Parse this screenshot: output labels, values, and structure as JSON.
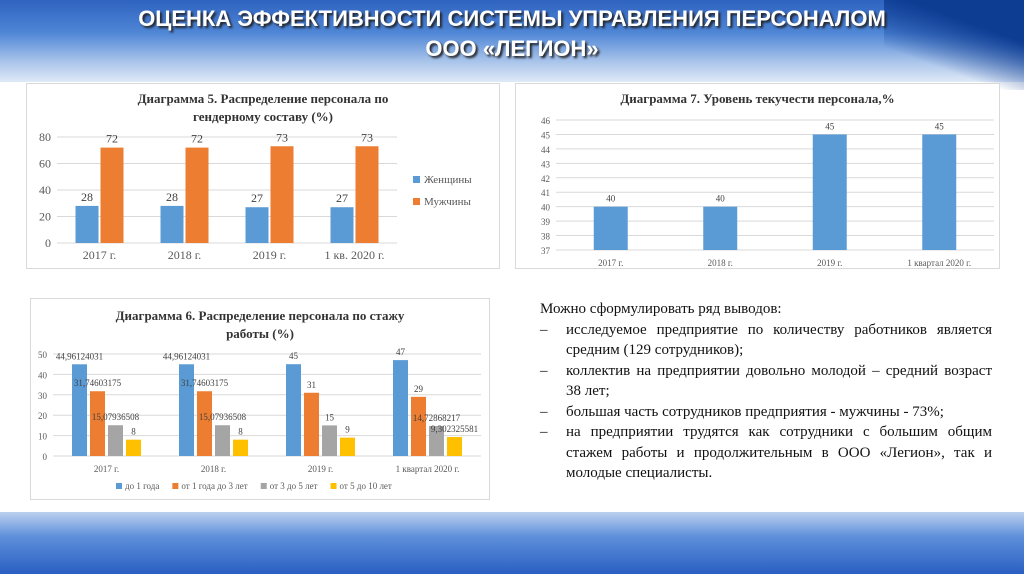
{
  "header": {
    "line1": "ОЦЕНКА ЭФФЕКТИВНОСТИ СИСТЕМЫ УПРАВЛЕНИЯ ПЕРСОНАЛОМ",
    "line2": "ООО «ЛЕГИОН»"
  },
  "chart_data": [
    {
      "id": "c5",
      "type": "bar",
      "title": "Диаграмма 5. Распределение персонала по гендерному составу (%)",
      "title_lines": [
        "Диаграмма 5. Распределение персонала по",
        "гендерному составу (%)"
      ],
      "categories": [
        "2017 г.",
        "2018 г.",
        "2019 г.",
        "1 кв. 2020 г."
      ],
      "series": [
        {
          "name": "Женщины",
          "color": "#5b9bd5",
          "values": [
            28,
            28,
            27,
            27
          ],
          "labels": [
            "28",
            "28",
            "27",
            "27"
          ]
        },
        {
          "name": "Мужчины",
          "color": "#ed7d31",
          "values": [
            72,
            72,
            73,
            73
          ],
          "labels": [
            "72",
            "72",
            "73",
            "73"
          ]
        }
      ],
      "ylim": [
        0,
        80
      ],
      "yticks": [
        "0",
        "20",
        "40",
        "60",
        "80"
      ],
      "legend": "right",
      "grid": true
    },
    {
      "id": "c7",
      "type": "bar",
      "title": "Диаграмма 7. Уровень текучести персонала,%",
      "title_lines": [
        "Диаграмма 7. Уровень текучести персонала,%"
      ],
      "categories": [
        "2017 г.",
        "2018 г.",
        "2019 г.",
        "1 квартал 2020 г."
      ],
      "series": [
        {
          "name": "Текучесть",
          "color": "#5b9bd5",
          "values": [
            40,
            40,
            45,
            45
          ],
          "labels": [
            "40",
            "40",
            "45",
            "45"
          ]
        }
      ],
      "ylim": [
        37,
        46
      ],
      "yticks": [
        "37",
        "38",
        "39",
        "40",
        "41",
        "42",
        "43",
        "44",
        "45",
        "46"
      ],
      "legend": "none",
      "grid": true
    },
    {
      "id": "c6",
      "type": "bar",
      "title": "Диаграмма 6. Распределение персонала по стажу работы (%)",
      "title_lines": [
        "Диаграмма 6. Распределение персонала по стажу",
        "работы (%)"
      ],
      "categories": [
        "2017 г.",
        "2018 г.",
        "2019 г.",
        "1 квартал 2020 г."
      ],
      "series": [
        {
          "name": "до 1 года",
          "color": "#5b9bd5",
          "values": [
            44.96124031,
            44.96124031,
            45,
            47
          ],
          "labels": [
            "44,96124031",
            "44,96124031",
            "45",
            "47"
          ]
        },
        {
          "name": "от 1 года до 3 лет",
          "color": "#ed7d31",
          "values": [
            31.74603175,
            31.74603175,
            31,
            29
          ],
          "labels": [
            "31,74603175",
            "31,74603175",
            "31",
            "29"
          ]
        },
        {
          "name": "от 3 до 5 лет",
          "color": "#a5a5a5",
          "values": [
            15.07936508,
            15.07936508,
            15,
            14.72868217
          ],
          "labels": [
            "15,07936508",
            "15,07936508",
            "15",
            "14,72868217"
          ]
        },
        {
          "name": "от 5 до 10 лет",
          "color": "#ffc000",
          "values": [
            8,
            8,
            9,
            9.302325581
          ],
          "labels": [
            "8",
            "8",
            "9",
            "9,302325581"
          ]
        }
      ],
      "ylim": [
        0,
        50
      ],
      "yticks": [
        "0",
        "10",
        "20",
        "30",
        "40",
        "50"
      ],
      "legend": "bottom",
      "grid": true
    }
  ],
  "conclusions": {
    "intro": "Можно сформулировать ряд выводов:",
    "dash": "–",
    "items": [
      "исследуемое предприятие по количеству работников является средним (129 сотрудников);",
      "коллектив на предприятии довольно молодой – средний возраст 38 лет;",
      "большая часть сотрудников предприятия - мужчины - 73%;",
      "на предприятии трудятся как сотрудники с большим общим стажем работы и продолжительным в ООО «Легион», так и молодые специалисты."
    ]
  }
}
